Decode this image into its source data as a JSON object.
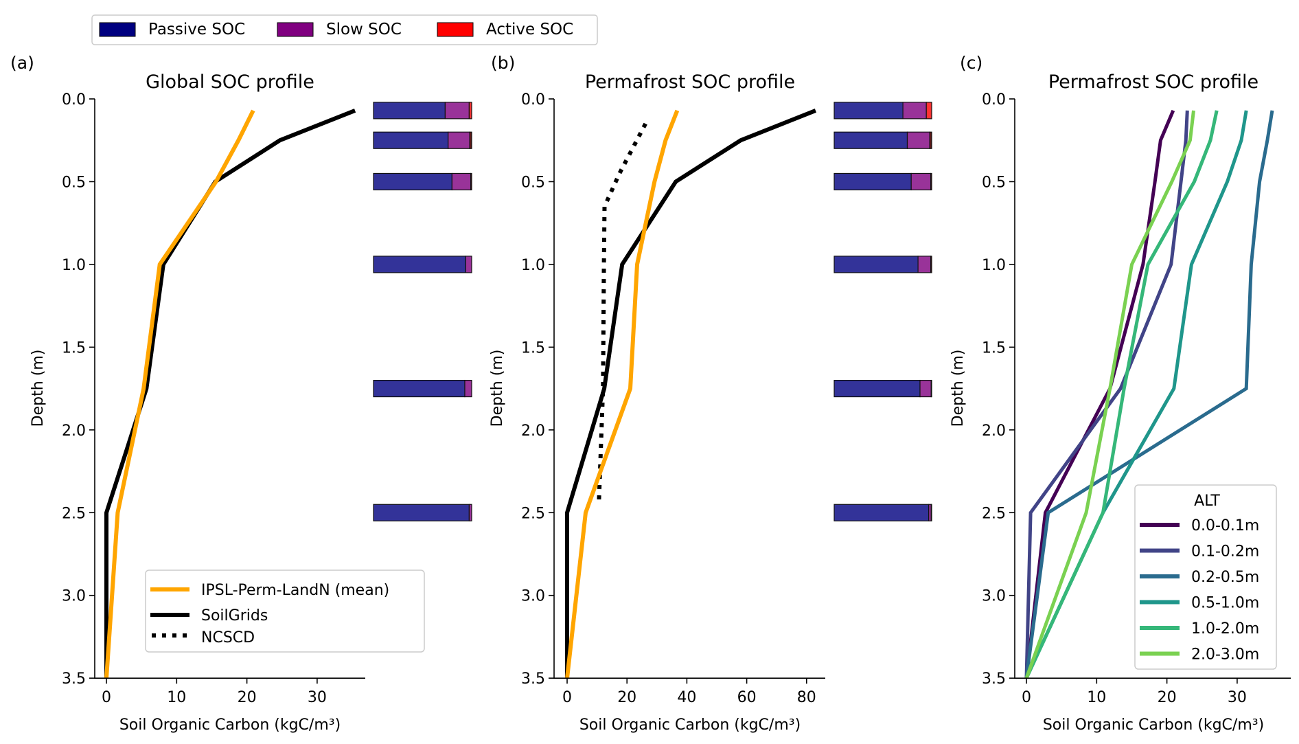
{
  "figure": {
    "top_legend": [
      {
        "label": "Passive SOC",
        "color": "#000080"
      },
      {
        "label": "Slow SOC",
        "color": "#800080"
      },
      {
        "label": "Active SOC",
        "color": "#ff0000"
      }
    ],
    "bar_colors": {
      "passive": "#333399",
      "slow": "#993399",
      "active": "#ff3333",
      "active_dark": "#661a1a"
    }
  },
  "chart_data": [
    {
      "type": "line",
      "panel_label": "(a)",
      "title": "Global SOC profile",
      "xlabel": "Soil Organic Carbon (kgC/m³)",
      "ylabel": "Depth (m)",
      "xlim": [
        -1.7,
        37
      ],
      "ylim": [
        3.5,
        0.0
      ],
      "xticks": [
        0,
        10,
        20,
        30
      ],
      "yticks": [
        0.0,
        0.5,
        1.0,
        1.5,
        2.0,
        2.5,
        3.0,
        3.5
      ],
      "ytick_labels": [
        "0.0",
        "0.5",
        "1.0",
        "1.5",
        "2.0",
        "2.5",
        "3.0",
        "3.5"
      ],
      "grid": false,
      "legend_position": "lower-right",
      "series": [
        {
          "name": "IPSL-Perm-LandN (mean)",
          "color": "#ffa500",
          "style": "solid",
          "depth": [
            0.07,
            0.25,
            0.5,
            1.0,
            1.75,
            2.5,
            3.5
          ],
          "values": [
            20.9,
            18.8,
            15.6,
            7.6,
            5.3,
            1.6,
            0.0
          ]
        },
        {
          "name": "SoilGrids",
          "color": "#000000",
          "style": "solid",
          "depth": [
            0.07,
            0.25,
            0.5,
            1.0,
            1.75,
            2.5,
            3.5
          ],
          "values": [
            35.4,
            24.7,
            15.5,
            8.1,
            5.7,
            0.0,
            0.0
          ]
        },
        {
          "name": "NCSCD",
          "color": "#000000",
          "style": "dotted",
          "in_legend_only": true,
          "depth": [],
          "values": []
        }
      ],
      "fraction_bars": {
        "depth": [
          0.07,
          0.25,
          0.5,
          1.0,
          1.75,
          2.5
        ],
        "passive": [
          0.73,
          0.76,
          0.8,
          0.94,
          0.93,
          0.975
        ],
        "slow": [
          0.245,
          0.22,
          0.19,
          0.06,
          0.07,
          0.025
        ],
        "active": [
          0.025,
          0.02,
          0.01,
          0.0,
          0.0,
          0.0
        ]
      }
    },
    {
      "type": "line",
      "panel_label": "(b)",
      "title": "Permafrost SOC profile",
      "xlabel": "Soil Organic Carbon (kgC/m³)",
      "ylabel": "Depth (m)",
      "xlim": [
        -4.4,
        86.4
      ],
      "ylim": [
        3.5,
        0.0
      ],
      "xticks": [
        0,
        20,
        40,
        60,
        80
      ],
      "yticks": [
        0.0,
        0.5,
        1.0,
        1.5,
        2.0,
        2.5,
        3.0,
        3.5
      ],
      "ytick_labels": [
        "0.0",
        "0.5",
        "1.0",
        "1.5",
        "2.0",
        "2.5",
        "3.0",
        "3.5"
      ],
      "grid": false,
      "series": [
        {
          "name": "IPSL-Perm-LandN (mean)",
          "color": "#ffa500",
          "style": "solid",
          "depth": [
            0.07,
            0.25,
            0.5,
            1.0,
            1.75,
            2.5,
            3.5
          ],
          "values": [
            36.8,
            32.9,
            29.2,
            23.4,
            21.1,
            6.2,
            0.0
          ]
        },
        {
          "name": "SoilGrids",
          "color": "#000000",
          "style": "solid",
          "depth": [
            0.07,
            0.25,
            0.5,
            1.0,
            1.75,
            2.5,
            3.5
          ],
          "values": [
            83.0,
            58.0,
            36.3,
            18.4,
            12.4,
            0.0,
            0.0
          ]
        },
        {
          "name": "NCSCD",
          "color": "#000000",
          "style": "dotted",
          "depth": [
            0.15,
            0.45,
            0.65,
            1.0,
            1.75,
            2.45
          ],
          "values": [
            26.2,
            17.5,
            12.5,
            12.3,
            12.0,
            10.6
          ]
        }
      ],
      "fraction_bars": {
        "depth": [
          0.07,
          0.25,
          0.5,
          1.0,
          1.75,
          2.5
        ],
        "passive": [
          0.705,
          0.75,
          0.79,
          0.86,
          0.88,
          0.97
        ],
        "slow": [
          0.24,
          0.23,
          0.2,
          0.13,
          0.115,
          0.025
        ],
        "active": [
          0.055,
          0.02,
          0.01,
          0.01,
          0.005,
          0.005
        ]
      }
    },
    {
      "type": "line",
      "panel_label": "(c)",
      "title": "Permafrost SOC profile",
      "xlabel": "Soil Organic Carbon (kgC/m³)",
      "ylabel": "Depth (m)",
      "xlim": [
        -1.7,
        37.5
      ],
      "ylim": [
        3.5,
        0.0
      ],
      "xticks": [
        0,
        10,
        20,
        30
      ],
      "yticks": [
        0.0,
        0.5,
        1.0,
        1.5,
        2.0,
        2.5,
        3.0,
        3.5
      ],
      "ytick_labels": [
        "0.0",
        "0.5",
        "1.0",
        "1.5",
        "2.0",
        "2.5",
        "3.0",
        "3.5"
      ],
      "grid": false,
      "legend_title": "ALT",
      "legend_position": "lower-right",
      "series": [
        {
          "name": "0.0-0.1m",
          "color": "#440154",
          "depth": [
            0.07,
            0.25,
            0.5,
            1.0,
            1.75,
            2.5,
            3.5
          ],
          "values": [
            20.9,
            19.1,
            18.3,
            16.6,
            11.9,
            2.7,
            0.0
          ]
        },
        {
          "name": "0.1-0.2m",
          "color": "#414487",
          "depth": [
            0.07,
            0.25,
            0.5,
            1.0,
            1.75,
            2.5,
            3.5
          ],
          "values": [
            22.9,
            22.7,
            22.0,
            20.6,
            13.4,
            0.6,
            0.0
          ]
        },
        {
          "name": "0.2-0.5m",
          "color": "#2a6b8e",
          "depth": [
            0.07,
            0.25,
            0.5,
            1.0,
            1.75,
            2.5,
            3.5
          ],
          "values": [
            35.0,
            34.3,
            33.2,
            32.0,
            31.3,
            3.1,
            0.0
          ]
        },
        {
          "name": "0.5-1.0m",
          "color": "#1f968b",
          "depth": [
            0.07,
            0.25,
            0.5,
            1.0,
            1.75,
            2.5,
            3.5
          ],
          "values": [
            31.3,
            30.6,
            28.6,
            23.5,
            21.0,
            10.9,
            0.0
          ]
        },
        {
          "name": "1.0-2.0m",
          "color": "#35b779",
          "depth": [
            0.07,
            0.25,
            0.5,
            1.0,
            1.75,
            2.5,
            3.5
          ],
          "values": [
            27.1,
            26.2,
            23.9,
            17.3,
            13.9,
            10.9,
            0.0
          ]
        },
        {
          "name": "2.0-3.0m",
          "color": "#7ad151",
          "depth": [
            0.07,
            0.25,
            0.5,
            1.0,
            1.75,
            2.5,
            3.5
          ],
          "values": [
            23.8,
            23.3,
            20.7,
            15.0,
            11.9,
            8.5,
            0.0
          ]
        }
      ]
    }
  ]
}
